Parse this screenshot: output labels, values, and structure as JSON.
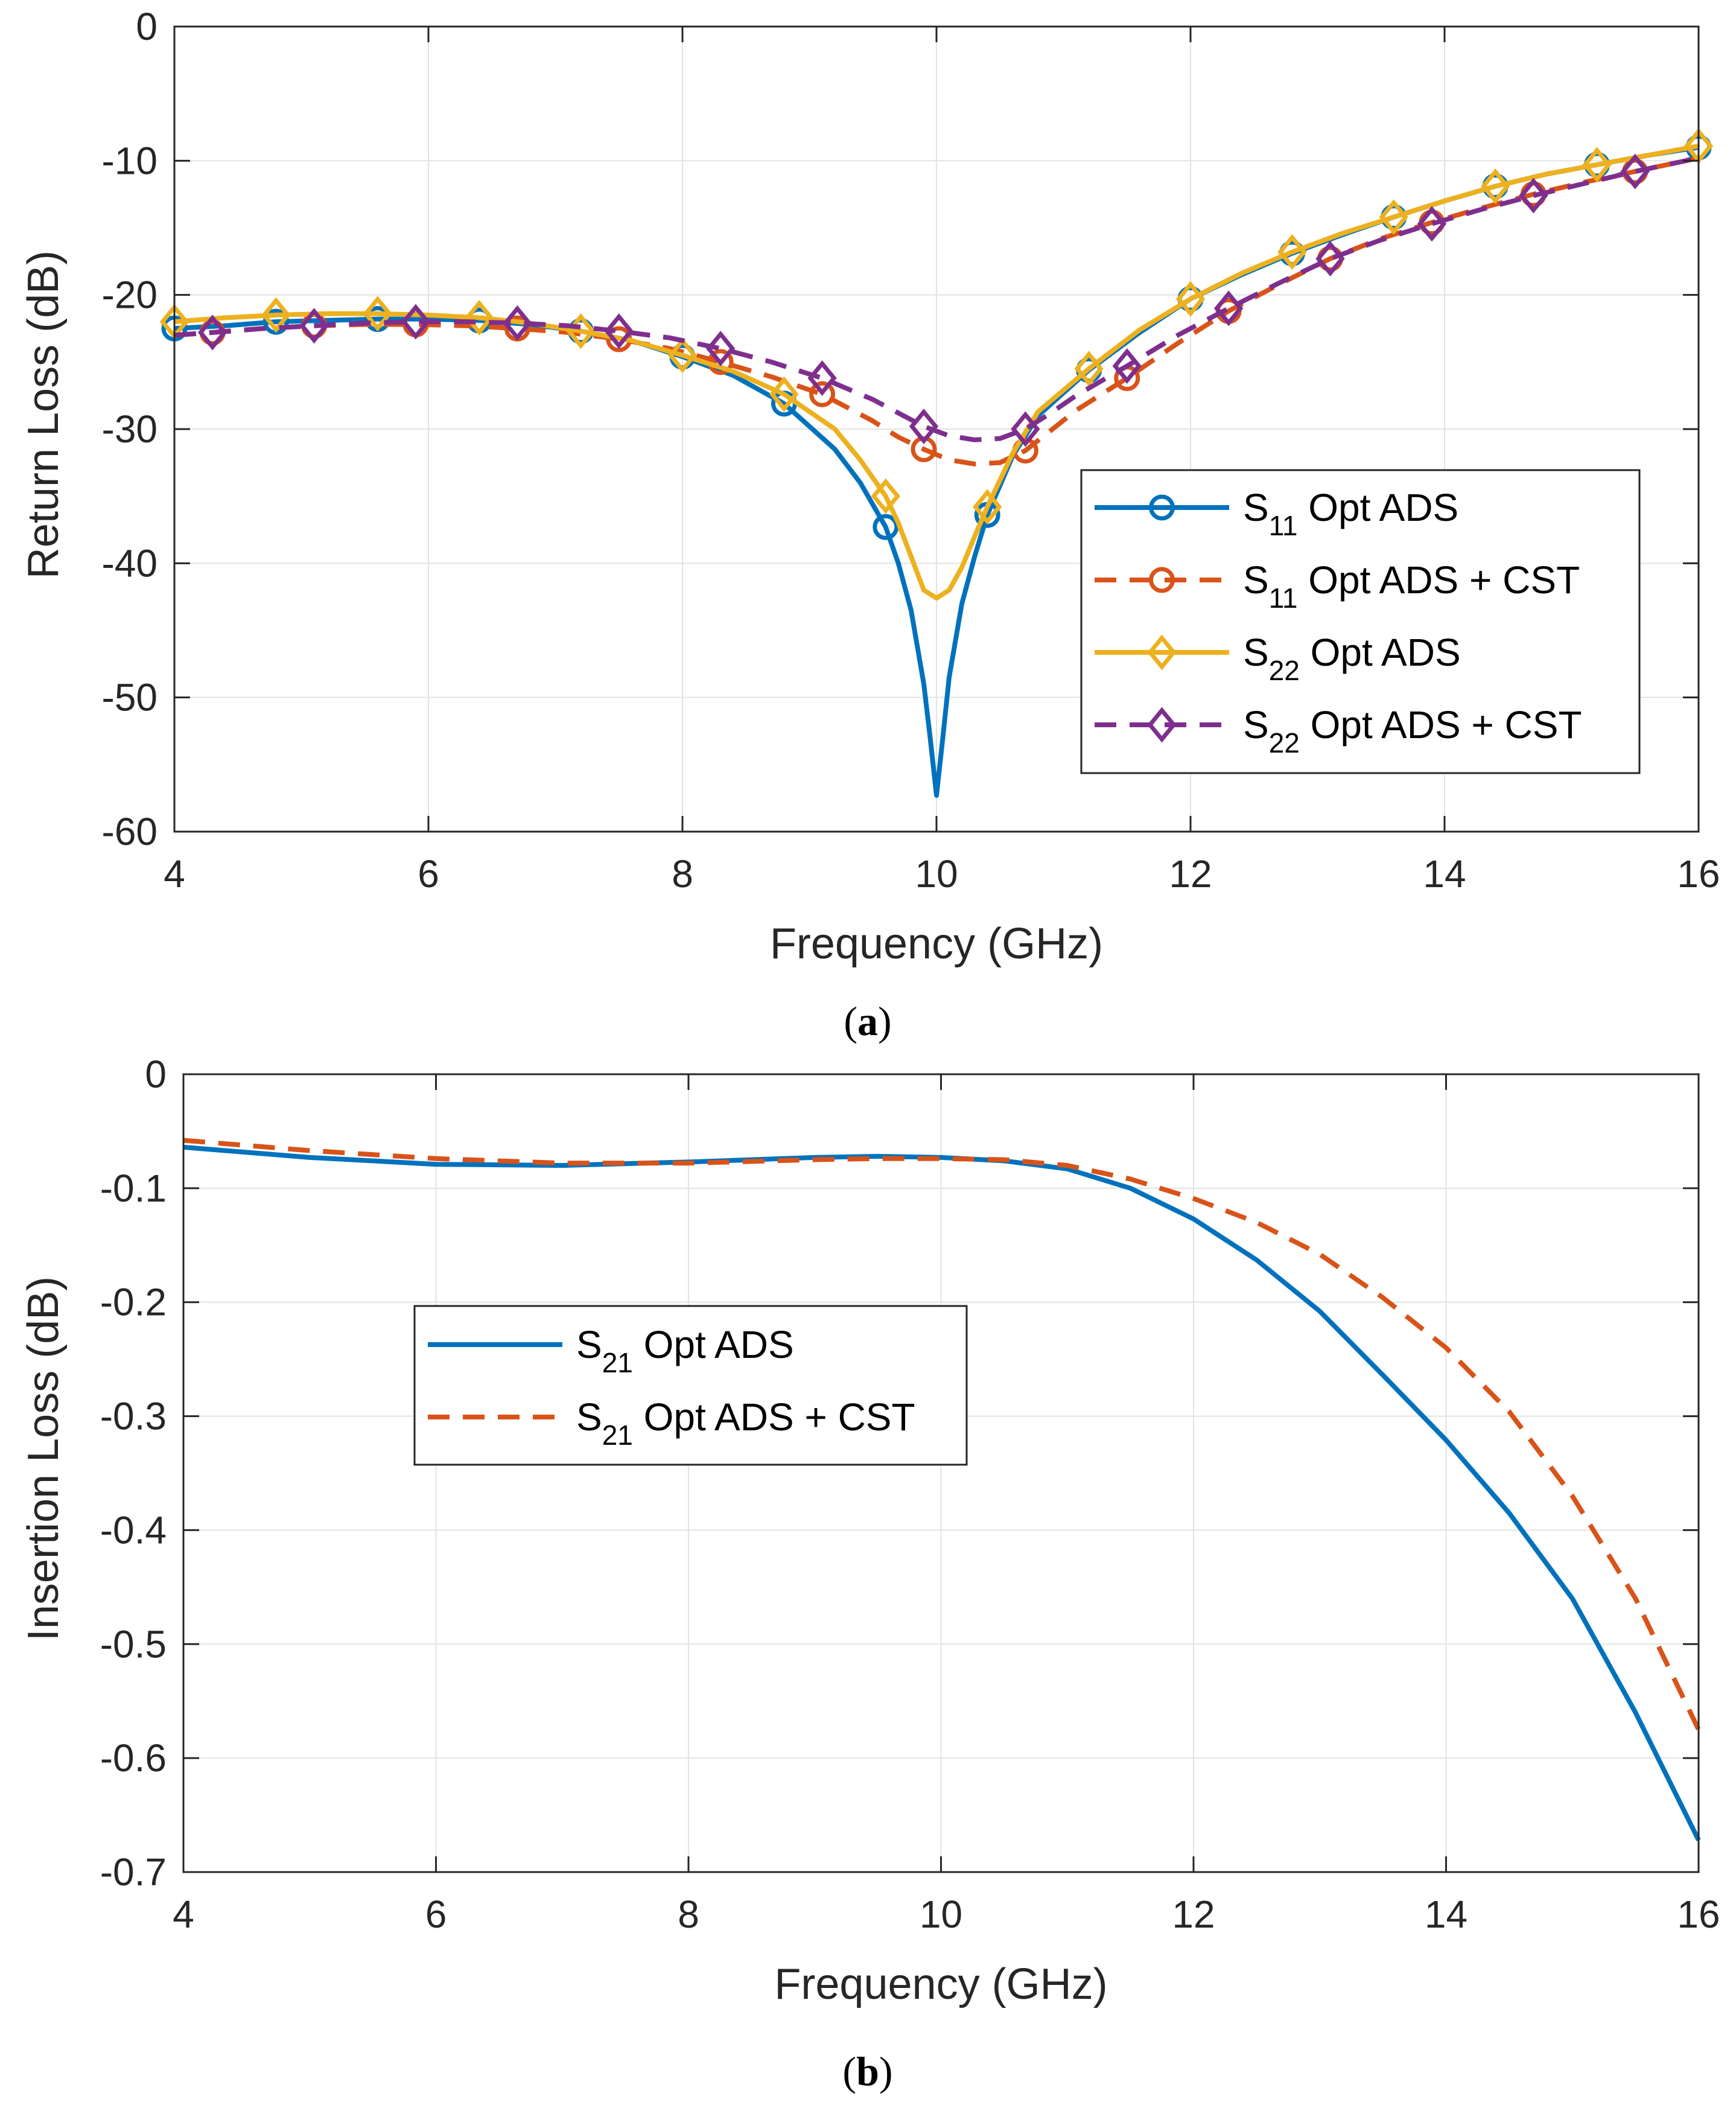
{
  "chart_data": [
    {
      "type": "line",
      "panel_label": "(a)",
      "panel_letter": "a",
      "xlabel": "Frequency (GHz)",
      "ylabel": "Return Loss (dB)",
      "xlim": [
        4,
        16
      ],
      "ylim": [
        -60,
        0
      ],
      "xticks": [
        4,
        6,
        8,
        10,
        12,
        14,
        16
      ],
      "yticks": [
        0,
        -10,
        -20,
        -30,
        -40,
        -50,
        -60
      ],
      "grid": true,
      "legend_position": "right",
      "series": [
        {
          "name": "S11 Opt ADS",
          "legend_main": "S",
          "legend_sub": "11",
          "legend_rest": " Opt ADS",
          "color": "#0072BD",
          "dash": "solid",
          "marker": "circle",
          "x": [
            4.0,
            4.4,
            4.8,
            5.2,
            5.6,
            6.0,
            6.4,
            6.8,
            7.2,
            7.6,
            8.0,
            8.4,
            8.8,
            9.2,
            9.4,
            9.6,
            9.7,
            9.8,
            9.9,
            9.95,
            10.0,
            10.05,
            10.1,
            10.2,
            10.3,
            10.4,
            10.6,
            10.8,
            11.2,
            11.6,
            12.0,
            12.4,
            12.8,
            13.2,
            13.6,
            14.0,
            14.4,
            14.8,
            15.2,
            15.6,
            16.0
          ],
          "y": [
            -22.5,
            -22.3,
            -22.0,
            -21.9,
            -21.8,
            -21.8,
            -21.9,
            -22.2,
            -22.7,
            -23.4,
            -24.6,
            -26.0,
            -28.1,
            -31.5,
            -34.0,
            -37.3,
            -40.0,
            -43.5,
            -49.0,
            -53.0,
            -57.3,
            -53.0,
            -48.5,
            -43.0,
            -39.5,
            -36.4,
            -32.0,
            -29.0,
            -25.6,
            -22.8,
            -20.3,
            -18.5,
            -16.9,
            -15.5,
            -14.2,
            -13.0,
            -11.9,
            -11.0,
            -10.3,
            -9.6,
            -9.0
          ],
          "marker_x": [
            4.0,
            4.8,
            5.6,
            6.4,
            7.2,
            8.0,
            8.8,
            9.6,
            10.4,
            11.2,
            12.0,
            12.8,
            13.6,
            14.4,
            15.2,
            16.0
          ]
        },
        {
          "name": "S11 Opt ADS + CST",
          "legend_main": "S",
          "legend_sub": "11",
          "legend_rest": " Opt ADS + CST",
          "color": "#D95319",
          "dash": "dashed",
          "marker": "circle",
          "x": [
            4.0,
            4.3,
            4.7,
            5.1,
            5.5,
            5.9,
            6.3,
            6.7,
            7.1,
            7.5,
            7.9,
            8.3,
            8.7,
            9.1,
            9.5,
            9.7,
            9.9,
            10.1,
            10.3,
            10.5,
            10.7,
            10.9,
            11.1,
            11.5,
            11.9,
            12.3,
            12.7,
            13.1,
            13.5,
            13.9,
            14.3,
            14.7,
            15.1,
            15.5,
            15.9,
            16.0
          ],
          "y": [
            -23.0,
            -22.8,
            -22.5,
            -22.3,
            -22.2,
            -22.2,
            -22.3,
            -22.5,
            -22.8,
            -23.3,
            -24.0,
            -25.0,
            -26.1,
            -27.4,
            -29.4,
            -30.6,
            -31.5,
            -32.3,
            -32.6,
            -32.5,
            -31.6,
            -30.1,
            -28.6,
            -26.2,
            -23.6,
            -21.2,
            -19.2,
            -17.3,
            -15.8,
            -14.6,
            -13.5,
            -12.5,
            -11.6,
            -10.8,
            -10.0,
            -9.8
          ],
          "marker_x": [
            4.3,
            5.1,
            5.9,
            6.7,
            7.5,
            8.3,
            9.1,
            9.9,
            10.7,
            11.5,
            12.3,
            13.1,
            13.9,
            14.7,
            15.5
          ]
        },
        {
          "name": "S22 Opt ADS",
          "legend_main": "S",
          "legend_sub": "22",
          "legend_rest": " Opt ADS",
          "color": "#EDB120",
          "dash": "solid",
          "marker": "diamond",
          "x": [
            4.0,
            4.4,
            4.8,
            5.2,
            5.6,
            6.0,
            6.4,
            6.8,
            7.2,
            7.6,
            8.0,
            8.4,
            8.8,
            9.2,
            9.4,
            9.6,
            9.7,
            9.8,
            9.9,
            10.0,
            10.1,
            10.2,
            10.3,
            10.4,
            10.6,
            10.8,
            11.2,
            11.6,
            12.0,
            12.4,
            12.8,
            13.2,
            13.6,
            14.0,
            14.4,
            14.8,
            15.2,
            15.6,
            16.0
          ],
          "y": [
            -22.0,
            -21.7,
            -21.5,
            -21.4,
            -21.4,
            -21.5,
            -21.7,
            -22.1,
            -22.7,
            -23.4,
            -24.5,
            -25.7,
            -27.4,
            -30.0,
            -32.3,
            -35.0,
            -37.0,
            -39.5,
            -42.0,
            -42.6,
            -42.0,
            -40.3,
            -38.0,
            -35.8,
            -31.8,
            -28.7,
            -25.5,
            -22.6,
            -20.3,
            -18.4,
            -16.8,
            -15.4,
            -14.2,
            -13.0,
            -11.9,
            -11.0,
            -10.3,
            -9.6,
            -8.9
          ],
          "marker_x": [
            4.0,
            4.8,
            5.6,
            6.4,
            7.2,
            8.0,
            8.8,
            9.6,
            10.4,
            11.2,
            12.0,
            12.8,
            13.6,
            14.4,
            15.2,
            16.0
          ]
        },
        {
          "name": "S22 Opt ADS + CST",
          "legend_main": "S",
          "legend_sub": "22",
          "legend_rest": " Opt ADS + CST",
          "color": "#7E2F8E",
          "dash": "dashed",
          "marker": "diamond",
          "x": [
            4.0,
            4.3,
            4.7,
            5.1,
            5.5,
            5.9,
            6.3,
            6.7,
            7.1,
            7.5,
            7.9,
            8.3,
            8.7,
            9.1,
            9.5,
            9.7,
            9.9,
            10.1,
            10.3,
            10.5,
            10.7,
            10.9,
            11.1,
            11.5,
            11.9,
            12.3,
            12.7,
            13.1,
            13.5,
            13.9,
            14.3,
            14.7,
            15.1,
            15.5,
            15.9,
            16.0
          ],
          "y": [
            -23.0,
            -22.8,
            -22.5,
            -22.3,
            -22.1,
            -22.0,
            -22.0,
            -22.1,
            -22.3,
            -22.7,
            -23.2,
            -24.0,
            -25.0,
            -26.2,
            -27.8,
            -28.8,
            -29.8,
            -30.5,
            -30.8,
            -30.7,
            -30.0,
            -28.8,
            -27.5,
            -25.3,
            -23.0,
            -21.0,
            -19.1,
            -17.3,
            -15.9,
            -14.7,
            -13.6,
            -12.6,
            -11.7,
            -10.8,
            -10.0,
            -9.7
          ],
          "marker_x": [
            4.3,
            5.1,
            5.9,
            6.7,
            7.5,
            8.3,
            9.1,
            9.9,
            10.7,
            11.5,
            12.3,
            13.1,
            13.9,
            14.7,
            15.5
          ]
        }
      ]
    },
    {
      "type": "line",
      "panel_label": "(b)",
      "panel_letter": "b",
      "xlabel": "Frequency (GHz)",
      "ylabel": "Insertion Loss (dB)",
      "xlim": [
        4,
        16
      ],
      "ylim": [
        -0.7,
        0
      ],
      "xticks": [
        4,
        6,
        8,
        10,
        12,
        14,
        16
      ],
      "yticks": [
        0,
        -0.1,
        -0.2,
        -0.3,
        -0.4,
        -0.5,
        -0.6,
        -0.7
      ],
      "grid": true,
      "legend_position": "center-left",
      "series": [
        {
          "name": "S21 Opt ADS",
          "legend_main": "S",
          "legend_sub": "21",
          "legend_rest": " Opt ADS",
          "color": "#0072BD",
          "dash": "solid",
          "marker": "none",
          "x": [
            4.0,
            5.0,
            6.0,
            7.0,
            8.0,
            9.0,
            9.5,
            10.0,
            10.5,
            11.0,
            11.5,
            12.0,
            12.5,
            13.0,
            13.5,
            14.0,
            14.5,
            15.0,
            15.5,
            16.0
          ],
          "y": [
            -0.064,
            -0.073,
            -0.079,
            -0.08,
            -0.077,
            -0.073,
            -0.072,
            -0.073,
            -0.076,
            -0.083,
            -0.1,
            -0.127,
            -0.163,
            -0.208,
            -0.264,
            -0.321,
            -0.385,
            -0.46,
            -0.56,
            -0.672
          ]
        },
        {
          "name": "S21 Opt ADS + CST",
          "legend_main": "S",
          "legend_sub": "21",
          "legend_rest": " Opt ADS + CST",
          "color": "#D95319",
          "dash": "dashed",
          "marker": "none",
          "x": [
            4.0,
            5.0,
            6.0,
            7.0,
            8.0,
            9.0,
            9.5,
            10.0,
            10.5,
            11.0,
            11.5,
            12.0,
            12.5,
            13.0,
            13.5,
            14.0,
            14.5,
            15.0,
            15.5,
            16.0
          ],
          "y": [
            -0.058,
            -0.067,
            -0.074,
            -0.078,
            -0.078,
            -0.075,
            -0.074,
            -0.074,
            -0.075,
            -0.08,
            -0.092,
            -0.109,
            -0.13,
            -0.158,
            -0.196,
            -0.24,
            -0.296,
            -0.37,
            -0.46,
            -0.575
          ]
        }
      ]
    }
  ]
}
